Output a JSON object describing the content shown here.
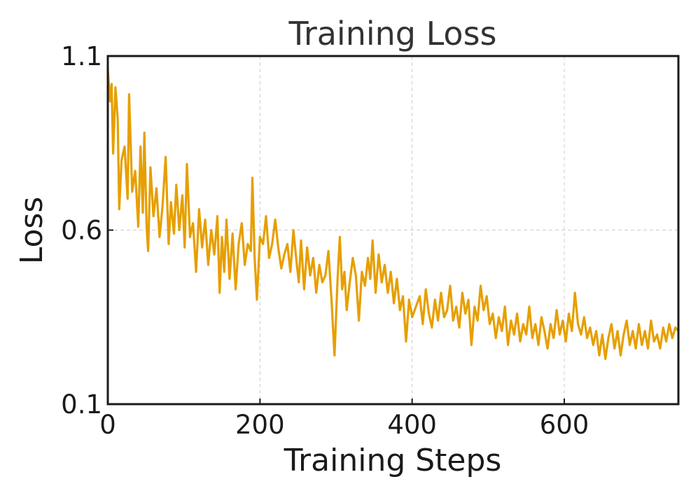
{
  "chart_data": {
    "type": "line",
    "title": "Training Loss",
    "xlabel": "Training Steps",
    "ylabel": "Loss",
    "xlim": [
      0,
      750
    ],
    "ylim": [
      0.1,
      1.1
    ],
    "xticks": [
      0,
      200,
      400,
      600
    ],
    "xtick_labels": [
      "0",
      "200",
      "400",
      "600"
    ],
    "yticks": [
      0.1,
      0.6,
      1.1
    ],
    "ytick_labels": [
      "0.1",
      "0.6",
      "1.1"
    ],
    "grid": true,
    "legend": false,
    "series": [
      {
        "color": "#E69F00",
        "points": [
          [
            0,
            1.06
          ],
          [
            3,
            0.97
          ],
          [
            5,
            1.02
          ],
          [
            7,
            0.82
          ],
          [
            10,
            1.01
          ],
          [
            13,
            0.92
          ],
          [
            15,
            0.66
          ],
          [
            18,
            0.8
          ],
          [
            22,
            0.84
          ],
          [
            26,
            0.69
          ],
          [
            28,
            0.99
          ],
          [
            32,
            0.71
          ],
          [
            36,
            0.77
          ],
          [
            40,
            0.61
          ],
          [
            43,
            0.84
          ],
          [
            46,
            0.65
          ],
          [
            48,
            0.88
          ],
          [
            51,
            0.61
          ],
          [
            53,
            0.54
          ],
          [
            56,
            0.78
          ],
          [
            60,
            0.64
          ],
          [
            64,
            0.72
          ],
          [
            68,
            0.58
          ],
          [
            72,
            0.67
          ],
          [
            76,
            0.81
          ],
          [
            80,
            0.56
          ],
          [
            83,
            0.68
          ],
          [
            87,
            0.59
          ],
          [
            90,
            0.73
          ],
          [
            94,
            0.6
          ],
          [
            98,
            0.7
          ],
          [
            101,
            0.55
          ],
          [
            104,
            0.79
          ],
          [
            108,
            0.58
          ],
          [
            112,
            0.62
          ],
          [
            116,
            0.48
          ],
          [
            120,
            0.66
          ],
          [
            124,
            0.55
          ],
          [
            128,
            0.63
          ],
          [
            132,
            0.5
          ],
          [
            136,
            0.6
          ],
          [
            140,
            0.53
          ],
          [
            144,
            0.64
          ],
          [
            147,
            0.42
          ],
          [
            150,
            0.58
          ],
          [
            153,
            0.48
          ],
          [
            156,
            0.63
          ],
          [
            160,
            0.46
          ],
          [
            164,
            0.59
          ],
          [
            168,
            0.43
          ],
          [
            172,
            0.56
          ],
          [
            176,
            0.62
          ],
          [
            180,
            0.5
          ],
          [
            184,
            0.56
          ],
          [
            188,
            0.54
          ],
          [
            190,
            0.75
          ],
          [
            193,
            0.52
          ],
          [
            196,
            0.4
          ],
          [
            200,
            0.58
          ],
          [
            204,
            0.56
          ],
          [
            208,
            0.64
          ],
          [
            212,
            0.52
          ],
          [
            216,
            0.56
          ],
          [
            220,
            0.63
          ],
          [
            224,
            0.55
          ],
          [
            228,
            0.49
          ],
          [
            232,
            0.53
          ],
          [
            236,
            0.56
          ],
          [
            240,
            0.48
          ],
          [
            244,
            0.6
          ],
          [
            248,
            0.51
          ],
          [
            251,
            0.45
          ],
          [
            254,
            0.57
          ],
          [
            258,
            0.43
          ],
          [
            262,
            0.55
          ],
          [
            266,
            0.47
          ],
          [
            270,
            0.52
          ],
          [
            274,
            0.42
          ],
          [
            278,
            0.5
          ],
          [
            282,
            0.45
          ],
          [
            286,
            0.47
          ],
          [
            290,
            0.54
          ],
          [
            294,
            0.4
          ],
          [
            298,
            0.24
          ],
          [
            302,
            0.46
          ],
          [
            305,
            0.58
          ],
          [
            308,
            0.43
          ],
          [
            311,
            0.48
          ],
          [
            314,
            0.37
          ],
          [
            318,
            0.45
          ],
          [
            322,
            0.52
          ],
          [
            326,
            0.47
          ],
          [
            330,
            0.34
          ],
          [
            334,
            0.48
          ],
          [
            338,
            0.44
          ],
          [
            342,
            0.52
          ],
          [
            345,
            0.46
          ],
          [
            348,
            0.57
          ],
          [
            352,
            0.42
          ],
          [
            356,
            0.53
          ],
          [
            360,
            0.45
          ],
          [
            364,
            0.5
          ],
          [
            368,
            0.42
          ],
          [
            372,
            0.48
          ],
          [
            376,
            0.39
          ],
          [
            380,
            0.46
          ],
          [
            384,
            0.37
          ],
          [
            388,
            0.41
          ],
          [
            392,
            0.28
          ],
          [
            396,
            0.4
          ],
          [
            400,
            0.35
          ],
          [
            405,
            0.38
          ],
          [
            410,
            0.41
          ],
          [
            414,
            0.33
          ],
          [
            418,
            0.43
          ],
          [
            422,
            0.36
          ],
          [
            426,
            0.32
          ],
          [
            430,
            0.4
          ],
          [
            434,
            0.34
          ],
          [
            438,
            0.42
          ],
          [
            442,
            0.35
          ],
          [
            446,
            0.37
          ],
          [
            450,
            0.44
          ],
          [
            454,
            0.34
          ],
          [
            458,
            0.38
          ],
          [
            462,
            0.32
          ],
          [
            466,
            0.42
          ],
          [
            470,
            0.36
          ],
          [
            474,
            0.4
          ],
          [
            478,
            0.27
          ],
          [
            482,
            0.38
          ],
          [
            486,
            0.34
          ],
          [
            490,
            0.44
          ],
          [
            494,
            0.37
          ],
          [
            498,
            0.41
          ],
          [
            502,
            0.33
          ],
          [
            506,
            0.36
          ],
          [
            510,
            0.29
          ],
          [
            514,
            0.35
          ],
          [
            518,
            0.31
          ],
          [
            522,
            0.38
          ],
          [
            526,
            0.27
          ],
          [
            530,
            0.34
          ],
          [
            534,
            0.3
          ],
          [
            538,
            0.36
          ],
          [
            542,
            0.28
          ],
          [
            546,
            0.33
          ],
          [
            550,
            0.3
          ],
          [
            554,
            0.38
          ],
          [
            558,
            0.29
          ],
          [
            562,
            0.33
          ],
          [
            566,
            0.27
          ],
          [
            570,
            0.35
          ],
          [
            574,
            0.31
          ],
          [
            578,
            0.26
          ],
          [
            582,
            0.33
          ],
          [
            586,
            0.29
          ],
          [
            590,
            0.37
          ],
          [
            594,
            0.3
          ],
          [
            598,
            0.34
          ],
          [
            602,
            0.28
          ],
          [
            606,
            0.36
          ],
          [
            610,
            0.31
          ],
          [
            614,
            0.42
          ],
          [
            618,
            0.33
          ],
          [
            622,
            0.3
          ],
          [
            626,
            0.35
          ],
          [
            630,
            0.29
          ],
          [
            634,
            0.32
          ],
          [
            638,
            0.27
          ],
          [
            642,
            0.31
          ],
          [
            646,
            0.24
          ],
          [
            650,
            0.3
          ],
          [
            654,
            0.23
          ],
          [
            658,
            0.29
          ],
          [
            662,
            0.33
          ],
          [
            666,
            0.26
          ],
          [
            670,
            0.31
          ],
          [
            674,
            0.24
          ],
          [
            678,
            0.3
          ],
          [
            682,
            0.34
          ],
          [
            686,
            0.27
          ],
          [
            690,
            0.31
          ],
          [
            694,
            0.26
          ],
          [
            698,
            0.33
          ],
          [
            702,
            0.27
          ],
          [
            706,
            0.31
          ],
          [
            710,
            0.26
          ],
          [
            714,
            0.34
          ],
          [
            718,
            0.28
          ],
          [
            722,
            0.3
          ],
          [
            726,
            0.26
          ],
          [
            730,
            0.32
          ],
          [
            734,
            0.28
          ],
          [
            738,
            0.33
          ],
          [
            742,
            0.29
          ],
          [
            746,
            0.32
          ],
          [
            750,
            0.31
          ]
        ]
      }
    ]
  }
}
